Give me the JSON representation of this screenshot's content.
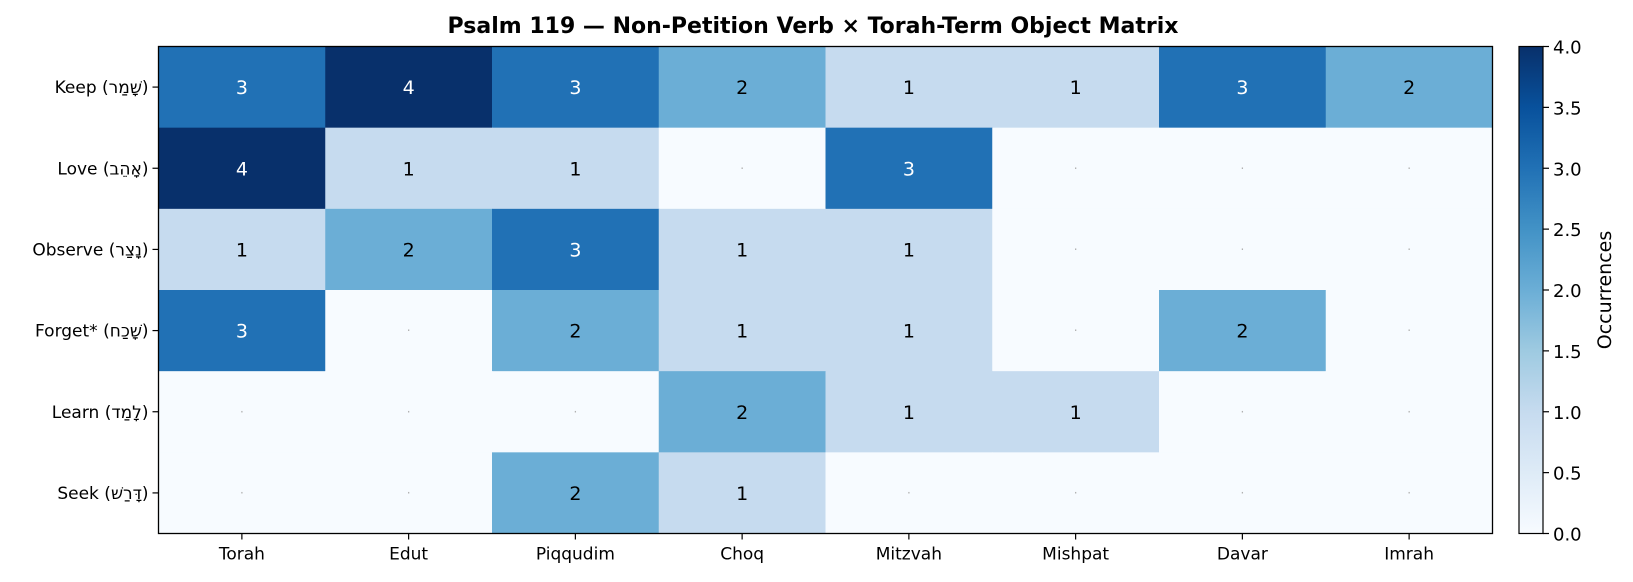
{
  "chart_data": {
    "type": "heatmap",
    "title": "Psalm 119 — Non-Petition Verb × Torah-Term Object Matrix",
    "rows": [
      "Keep (שָׁמַר)",
      "Love (אָהֵב)",
      "Observe (נָצַר)",
      "Forget* (שָׁכַח)",
      "Learn (לָמַד)",
      "Seek (דָּרַשׁ)"
    ],
    "columns": [
      "Torah",
      "Edut",
      "Piqqudim",
      "Choq",
      "Mitzvah",
      "Mishpat",
      "Davar",
      "Imrah"
    ],
    "values": [
      [
        3,
        4,
        3,
        2,
        1,
        1,
        3,
        2
      ],
      [
        4,
        1,
        1,
        0,
        3,
        0,
        0,
        0
      ],
      [
        1,
        2,
        3,
        1,
        1,
        0,
        0,
        0
      ],
      [
        3,
        0,
        2,
        1,
        1,
        0,
        2,
        0
      ],
      [
        0,
        0,
        0,
        2,
        1,
        1,
        0,
        0
      ],
      [
        0,
        0,
        2,
        1,
        0,
        0,
        0,
        0
      ]
    ],
    "zero_marker": "·",
    "colorbar": {
      "label": "Occurrences",
      "range": [
        0,
        4
      ],
      "ticks": [
        "0.0",
        "0.5",
        "1.0",
        "1.5",
        "2.0",
        "2.5",
        "3.0",
        "3.5",
        "4.0"
      ]
    },
    "colormap": "Blues",
    "colors": {
      "0": "#f7fbff",
      "1": "#c6dbef",
      "2": "#6baed6",
      "3": "#2171b5",
      "4": "#08306b",
      "text_dark": "#000000",
      "text_light": "#ffffff",
      "zero_marker": "#b0b0b0"
    }
  }
}
